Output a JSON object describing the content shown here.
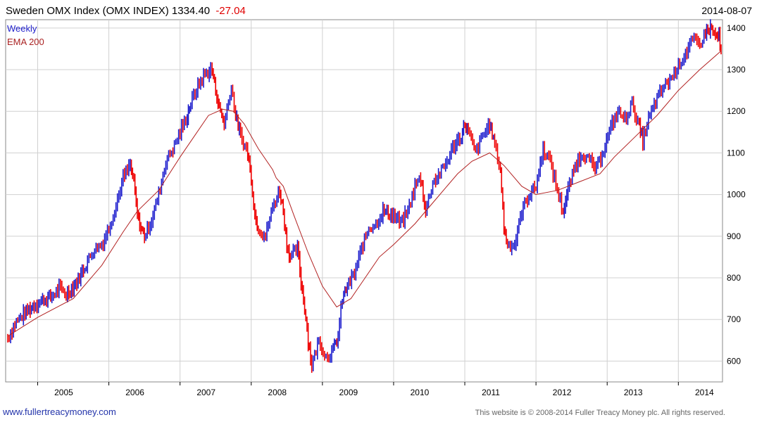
{
  "header": {
    "title": "Sweden OMX Index  (OMX INDEX) 1334.40",
    "change": "-27.04",
    "date": "2014-08-07"
  },
  "footer": {
    "website": "www.fullertreacymoney.com",
    "copyright": "This website is © 2008-2014 Fuller Treacy Money plc. All rights reserved."
  },
  "colors": {
    "up": "#1a1acc",
    "down": "#ee0000",
    "ema": "#b22222",
    "grid": "#d0d0d0"
  },
  "chart_data": {
    "type": "line",
    "title": "Sweden OMX Index  (OMX INDEX) 1334.40",
    "legend": [
      "Weekly",
      "EMA 200"
    ],
    "legend_position": "top-left",
    "grid": true,
    "ylim": [
      550,
      1420
    ],
    "xlim": [
      2004.55,
      2014.62
    ],
    "x_ticks": [
      2005,
      2006,
      2007,
      2008,
      2009,
      2010,
      2011,
      2012,
      2013,
      2014
    ],
    "y_ticks": [
      600,
      700,
      800,
      900,
      1000,
      1100,
      1200,
      1300,
      1400
    ],
    "series": [
      {
        "name": "Weekly",
        "points": [
          [
            2004.58,
            655
          ],
          [
            2004.7,
            695
          ],
          [
            2004.82,
            715
          ],
          [
            2004.95,
            735
          ],
          [
            2005.05,
            745
          ],
          [
            2005.2,
            755
          ],
          [
            2005.3,
            775
          ],
          [
            2005.4,
            760
          ],
          [
            2005.55,
            790
          ],
          [
            2005.7,
            840
          ],
          [
            2005.8,
            870
          ],
          [
            2005.9,
            880
          ],
          [
            2006.0,
            920
          ],
          [
            2006.1,
            975
          ],
          [
            2006.2,
            1040
          ],
          [
            2006.3,
            1070
          ],
          [
            2006.35,
            1030
          ],
          [
            2006.4,
            950
          ],
          [
            2006.45,
            920
          ],
          [
            2006.5,
            900
          ],
          [
            2006.6,
            940
          ],
          [
            2006.7,
            1000
          ],
          [
            2006.8,
            1080
          ],
          [
            2006.9,
            1110
          ],
          [
            2007.0,
            1150
          ],
          [
            2007.1,
            1190
          ],
          [
            2007.15,
            1220
          ],
          [
            2007.25,
            1260
          ],
          [
            2007.35,
            1290
          ],
          [
            2007.45,
            1300
          ],
          [
            2007.5,
            1250
          ],
          [
            2007.55,
            1210
          ],
          [
            2007.62,
            1170
          ],
          [
            2007.72,
            1260
          ],
          [
            2007.78,
            1190
          ],
          [
            2007.85,
            1140
          ],
          [
            2007.95,
            1100
          ],
          [
            2008.0,
            1040
          ],
          [
            2008.05,
            950
          ],
          [
            2008.1,
            920
          ],
          [
            2008.2,
            900
          ],
          [
            2008.3,
            970
          ],
          [
            2008.4,
            1010
          ],
          [
            2008.45,
            960
          ],
          [
            2008.5,
            880
          ],
          [
            2008.55,
            850
          ],
          [
            2008.65,
            870
          ],
          [
            2008.7,
            790
          ],
          [
            2008.75,
            730
          ],
          [
            2008.8,
            650
          ],
          [
            2008.85,
            590
          ],
          [
            2008.95,
            650
          ],
          [
            2009.05,
            610
          ],
          [
            2009.15,
            625
          ],
          [
            2009.22,
            660
          ],
          [
            2009.28,
            750
          ],
          [
            2009.35,
            780
          ],
          [
            2009.45,
            810
          ],
          [
            2009.55,
            870
          ],
          [
            2009.65,
            920
          ],
          [
            2009.75,
            930
          ],
          [
            2009.85,
            960
          ],
          [
            2010.0,
            950
          ],
          [
            2010.1,
            930
          ],
          [
            2010.2,
            960
          ],
          [
            2010.3,
            1020
          ],
          [
            2010.38,
            1040
          ],
          [
            2010.45,
            960
          ],
          [
            2010.55,
            1030
          ],
          [
            2010.65,
            1050
          ],
          [
            2010.75,
            1080
          ],
          [
            2010.85,
            1120
          ],
          [
            2010.95,
            1140
          ],
          [
            2011.0,
            1170
          ],
          [
            2011.05,
            1150
          ],
          [
            2011.15,
            1100
          ],
          [
            2011.25,
            1140
          ],
          [
            2011.35,
            1170
          ],
          [
            2011.42,
            1120
          ],
          [
            2011.5,
            1060
          ],
          [
            2011.55,
            920
          ],
          [
            2011.6,
            880
          ],
          [
            2011.7,
            880
          ],
          [
            2011.8,
            960
          ],
          [
            2011.9,
            1000
          ],
          [
            2012.0,
            1020
          ],
          [
            2012.1,
            1110
          ],
          [
            2012.2,
            1080
          ],
          [
            2012.3,
            1010
          ],
          [
            2012.38,
            960
          ],
          [
            2012.45,
            1010
          ],
          [
            2012.55,
            1070
          ],
          [
            2012.65,
            1100
          ],
          [
            2012.75,
            1080
          ],
          [
            2012.85,
            1060
          ],
          [
            2012.95,
            1110
          ],
          [
            2013.05,
            1160
          ],
          [
            2013.15,
            1200
          ],
          [
            2013.25,
            1180
          ],
          [
            2013.35,
            1220
          ],
          [
            2013.45,
            1160
          ],
          [
            2013.5,
            1130
          ],
          [
            2013.58,
            1180
          ],
          [
            2013.7,
            1230
          ],
          [
            2013.8,
            1260
          ],
          [
            2013.9,
            1280
          ],
          [
            2014.0,
            1310
          ],
          [
            2014.1,
            1340
          ],
          [
            2014.2,
            1370
          ],
          [
            2014.3,
            1360
          ],
          [
            2014.38,
            1390
          ],
          [
            2014.45,
            1400
          ],
          [
            2014.52,
            1380
          ],
          [
            2014.57,
            1380
          ],
          [
            2014.6,
            1334
          ]
        ]
      },
      {
        "name": "EMA 200",
        "points": [
          [
            2004.58,
            660
          ],
          [
            2005.0,
            705
          ],
          [
            2005.5,
            750
          ],
          [
            2005.9,
            830
          ],
          [
            2006.2,
            910
          ],
          [
            2006.4,
            960
          ],
          [
            2006.7,
            1010
          ],
          [
            2007.0,
            1090
          ],
          [
            2007.2,
            1140
          ],
          [
            2007.4,
            1190
          ],
          [
            2007.6,
            1205
          ],
          [
            2007.75,
            1200
          ],
          [
            2007.9,
            1170
          ],
          [
            2008.1,
            1110
          ],
          [
            2008.3,
            1060
          ],
          [
            2008.35,
            1040
          ],
          [
            2008.45,
            1020
          ],
          [
            2008.6,
            950
          ],
          [
            2008.8,
            860
          ],
          [
            2009.0,
            780
          ],
          [
            2009.2,
            730
          ],
          [
            2009.4,
            750
          ],
          [
            2009.6,
            800
          ],
          [
            2009.8,
            850
          ],
          [
            2010.0,
            880
          ],
          [
            2010.3,
            930
          ],
          [
            2010.6,
            990
          ],
          [
            2010.9,
            1050
          ],
          [
            2011.1,
            1080
          ],
          [
            2011.35,
            1100
          ],
          [
            2011.55,
            1070
          ],
          [
            2011.8,
            1020
          ],
          [
            2012.0,
            1000
          ],
          [
            2012.3,
            1010
          ],
          [
            2012.6,
            1030
          ],
          [
            2012.9,
            1050
          ],
          [
            2013.1,
            1090
          ],
          [
            2013.4,
            1140
          ],
          [
            2013.7,
            1190
          ],
          [
            2014.0,
            1250
          ],
          [
            2014.3,
            1300
          ],
          [
            2014.6,
            1345
          ]
        ]
      }
    ]
  }
}
